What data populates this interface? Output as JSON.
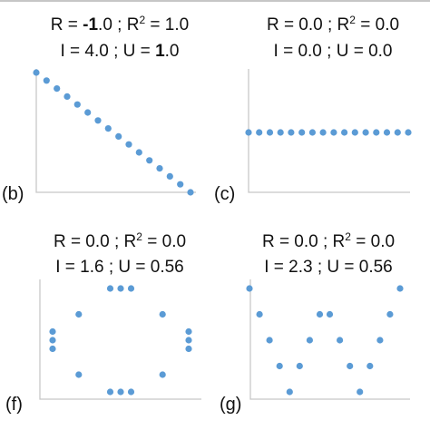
{
  "chart_data": [
    {
      "type": "scatter",
      "panel_label": "(b)",
      "title_lines": [
        [
          {
            "t": "R = "
          },
          {
            "t": "-1",
            "b": true
          },
          {
            "t": ".0 ;  R"
          },
          {
            "t": "2",
            "sup": true
          },
          {
            "t": " = 1.0"
          }
        ],
        [
          {
            "t": "I = 4.0  ;  U = "
          },
          {
            "t": "1",
            "b": true
          },
          {
            "t": ".0"
          }
        ]
      ],
      "xlim": [
        0,
        16
      ],
      "ylim": [
        0,
        16
      ],
      "x": [
        0,
        1,
        2,
        3,
        4,
        5,
        6,
        7,
        8,
        9,
        10,
        11,
        12,
        13,
        14,
        15
      ],
      "y": [
        15,
        14,
        13,
        12,
        11,
        10,
        9,
        8,
        7,
        6,
        5,
        4,
        3,
        2,
        1,
        0
      ]
    },
    {
      "type": "scatter",
      "panel_label": "(c)",
      "title_lines": [
        [
          {
            "t": "R = 0.0 ;  R"
          },
          {
            "t": "2",
            "sup": true
          },
          {
            "t": " = 0.0"
          }
        ],
        [
          {
            "t": "I = 0.0  ;  U = 0.0"
          }
        ]
      ],
      "xlim": [
        0,
        16
      ],
      "ylim": [
        0,
        16
      ],
      "x": [
        0,
        1,
        2,
        3,
        4,
        5,
        6,
        7,
        8,
        9,
        10,
        11,
        12,
        13,
        14,
        15
      ],
      "y": [
        8,
        8,
        8,
        8,
        8,
        8,
        8,
        8,
        8,
        8,
        8,
        8,
        8,
        8,
        8,
        8
      ]
    },
    {
      "type": "scatter",
      "panel_label": "(f)",
      "title_lines": [
        [
          {
            "t": "R = 0.0 ;  R"
          },
          {
            "t": "2",
            "sup": true
          },
          {
            "t": " = 0.0"
          }
        ],
        [
          {
            "t": "I = 1.6  ;  U = 0.56"
          }
        ]
      ],
      "xlim": [
        0,
        16
      ],
      "ylim": [
        0,
        16
      ],
      "x": [
        1.5,
        1.5,
        1.5,
        4,
        4,
        7,
        8,
        9,
        7,
        8,
        9,
        12,
        12,
        14.5,
        14.5,
        14.5
      ],
      "y": [
        7,
        6,
        5,
        9,
        2,
        12,
        12,
        12,
        0,
        0,
        0,
        9,
        2,
        7,
        6,
        5
      ]
    },
    {
      "type": "scatter",
      "panel_label": "(g)",
      "title_lines": [
        [
          {
            "t": "R = 0.0 ;  R"
          },
          {
            "t": "2",
            "sup": true
          },
          {
            "t": " = 0.0"
          }
        ],
        [
          {
            "t": "I = 2.3  ;  U = 0.56"
          }
        ]
      ],
      "xlim": [
        0,
        16
      ],
      "ylim": [
        0,
        16
      ],
      "x": [
        0,
        1,
        2,
        3,
        4,
        5,
        6,
        7,
        8,
        9,
        10,
        11,
        12,
        13,
        14,
        15
      ],
      "y": [
        10,
        8,
        6,
        4,
        2,
        4,
        6,
        8,
        8,
        6,
        4,
        2,
        4,
        6,
        8,
        10
      ]
    }
  ]
}
